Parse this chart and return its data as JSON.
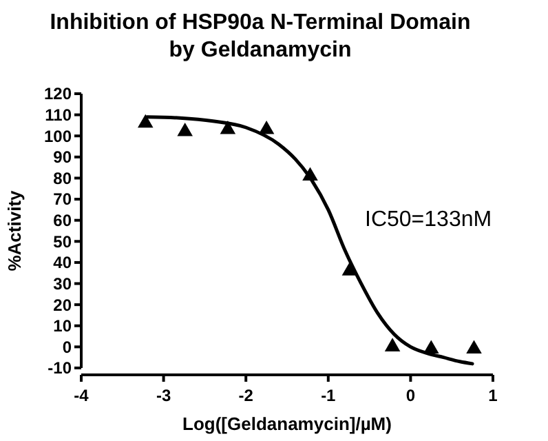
{
  "chart_data": {
    "type": "scatter",
    "title": "Inhibition of HSP90a N-Terminal Domain by Geldanamycin",
    "xlabel": "Log([Geldanamycin]/µM)",
    "ylabel": "%Activity",
    "annotations": [
      "IC50=133nM"
    ],
    "xlim": [
      -4,
      1
    ],
    "xticks": [
      -4,
      -3,
      -2,
      -1,
      0,
      1
    ],
    "ylim": [
      -10,
      120
    ],
    "yticks": [
      -10,
      0,
      10,
      20,
      30,
      40,
      50,
      60,
      70,
      80,
      90,
      100,
      110,
      120
    ],
    "grid": false,
    "series": [
      {
        "color": "#000000",
        "marker": "triangle",
        "x": [
          -3.22,
          -2.74,
          -2.22,
          -1.75,
          -1.22,
          -0.74,
          -0.22,
          0.25,
          0.77
        ],
        "values": [
          106,
          102,
          103,
          103,
          81,
          36,
          0,
          -1,
          -1
        ]
      },
      {
        "type": "line",
        "color": "#000000",
        "marker": "none",
        "line_style": "solid",
        "x": [
          -3.2,
          -2.8,
          -2.4,
          -2.0,
          -1.6,
          -1.4,
          -1.2,
          -1.0,
          -0.8,
          -0.6,
          -0.4,
          -0.2,
          0,
          0.2,
          0.4,
          0.6,
          0.75
        ],
        "values": [
          109,
          108.5,
          107,
          104,
          96,
          89,
          79,
          65,
          46,
          30,
          16,
          6,
          0,
          -3,
          -5,
          -7,
          -8
        ]
      }
    ]
  }
}
